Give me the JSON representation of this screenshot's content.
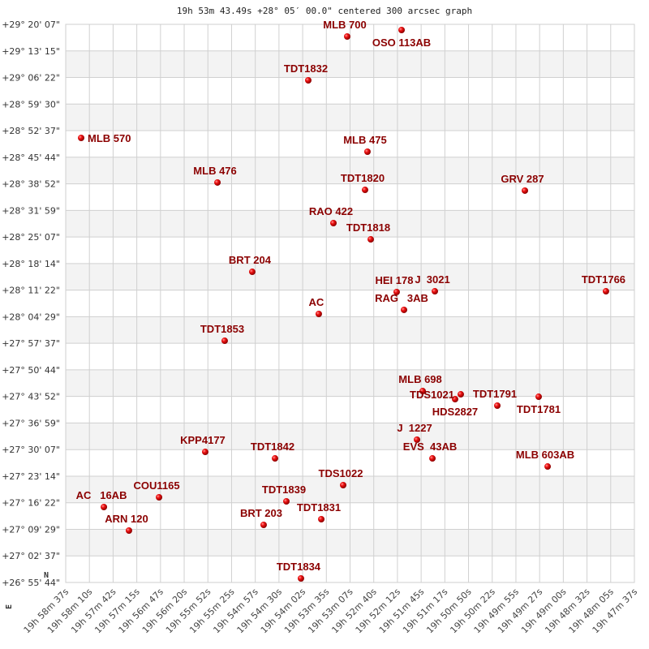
{
  "chart_data": {
    "type": "scatter",
    "title": "19h 53m 43.49s +28° 05′ 00.0\" centered 300 arcsec graph",
    "xlabel": "",
    "ylabel": "",
    "x_ticks": [
      "19h 58m 37s",
      "19h 58m 10s",
      "19h 57m 42s",
      "19h 57m 15s",
      "19h 56m 47s",
      "19h 56m 20s",
      "19h 55m 52s",
      "19h 55m 25s",
      "19h 54m 57s",
      "19h 54m 30s",
      "19h 54m 02s",
      "19h 53m 35s",
      "19h 53m 07s",
      "19h 52m 40s",
      "19h 52m 12s",
      "19h 51m 45s",
      "19h 51m 17s",
      "19h 50m 50s",
      "19h 50m 22s",
      "19h 49m 55s",
      "19h 49m 27s",
      "19h 49m 00s",
      "19h 48m 32s",
      "19h 48m 05s",
      "19h 47m 37s"
    ],
    "y_ticks": [
      "+29° 20' 07\"",
      "+29° 13' 15\"",
      "+29° 06' 22\"",
      "+28° 59' 30\"",
      "+28° 52' 37\"",
      "+28° 45' 44\"",
      "+28° 38' 52\"",
      "+28° 31' 59\"",
      "+28° 25' 07\"",
      "+28° 18' 14\"",
      "+28° 11' 22\"",
      "+28° 04' 29\"",
      "+27° 57' 37\"",
      "+27° 50' 44\"",
      "+27° 43' 52\"",
      "+27° 36' 59\"",
      "+27° 30' 07\"",
      "+27° 23' 14\"",
      "+27° 16' 22\"",
      "+27° 09' 29\"",
      "+27° 02' 37\"",
      "+26° 55' 44\""
    ],
    "xlim": [
      "19h 58m 37s",
      "19h 47m 37s"
    ],
    "ylim": [
      "+26° 55' 44\"",
      "+29° 20' 07\""
    ],
    "x_reversed": true,
    "grid": true,
    "compass": {
      "north": "N",
      "east": "E"
    },
    "point_color": "#dd0000",
    "label_color": "#8b0000",
    "points": [
      {
        "name": "MLB 700",
        "ra": "19h 53m 10.3s",
        "dec": "+29° 16' 58\""
      },
      {
        "name": "OSO 113AB",
        "ra": "19h 52m 07.2s",
        "dec": "+29° 18' 39\""
      },
      {
        "name": "TDT1832",
        "ra": "19h 53m 55.5s",
        "dec": "+29° 05' 38\""
      },
      {
        "name": "MLB 570",
        "ra": "19h 58m 19.1s",
        "dec": "+28° 50' 44\""
      },
      {
        "name": "MLB 475",
        "ra": "19h 52m 46.8s",
        "dec": "+28° 47' 10\""
      },
      {
        "name": "MLB 476",
        "ra": "19h 55m 40.9s",
        "dec": "+28° 39' 12\""
      },
      {
        "name": "TDT1820",
        "ra": "19h 52m 49.6s",
        "dec": "+28° 37' 18\""
      },
      {
        "name": "GRV 287",
        "ra": "19h 49m 44.1s",
        "dec": "+28° 37' 06\""
      },
      {
        "name": "RAO 422",
        "ra": "19h 53m 26.3s",
        "dec": "+28° 28' 42\""
      },
      {
        "name": "TDT1818",
        "ra": "19h 52m 43.0s",
        "dec": "+28° 24' 30\""
      },
      {
        "name": "BRT 204",
        "ra": "19h 55m 00.5s",
        "dec": "+28° 16' 06\""
      },
      {
        "name": "HEI 178",
        "ra": "19h 52m 12.9s",
        "dec": "+28° 10' 52\""
      },
      {
        "name": "J  3021",
        "ra": "19h 51m 28.6s",
        "dec": "+28° 11' 04\""
      },
      {
        "name": "TDT1766",
        "ra": "19h 48m 10.0s",
        "dec": "+28° 11' 04\""
      },
      {
        "name": "RAG   3AB",
        "ra": "19h 52m 04.4s",
        "dec": "+28° 06' 15\""
      },
      {
        "name": "AC",
        "ra": "19h 53m 43.3s",
        "dec": "+28° 05' 12\""
      },
      {
        "name": "TDT1853",
        "ra": "19h 55m 32.5s",
        "dec": "+27° 58' 16\""
      },
      {
        "name": "MLB 698",
        "ra": "19h 51m 42.7s",
        "dec": "+27° 45' 15\""
      },
      {
        "name": "HDS2827",
        "ra": "19h 51m 05.1s",
        "dec": "+27° 43' 09\""
      },
      {
        "name": "TDS1021",
        "ra": "19h 50m 58.5s",
        "dec": "+27° 44' 25\""
      },
      {
        "name": "TDT1791",
        "ra": "19h 50m 16.1s",
        "dec": "+27° 41' 29\""
      },
      {
        "name": "TDT1781",
        "ra": "19h 49m 28.1s",
        "dec": "+27° 43' 47\""
      },
      {
        "name": "J  1227",
        "ra": "19h 51m 49.3s",
        "dec": "+27° 32' 40\""
      },
      {
        "name": "EVS  43AB",
        "ra": "19h 51m 31.4s",
        "dec": "+27° 27' 50\""
      },
      {
        "name": "MLB 603AB",
        "ra": "19h 49m 17.7s",
        "dec": "+27° 25' 44\""
      },
      {
        "name": "KPP4177",
        "ra": "19h 55m 55.1s",
        "dec": "+27° 29' 31\""
      },
      {
        "name": "TDT1842",
        "ra": "19h 54m 34.1s",
        "dec": "+27° 27' 50\""
      },
      {
        "name": "TDS1022",
        "ra": "19h 53m 15.0s",
        "dec": "+27° 20' 55\""
      },
      {
        "name": "COU1165",
        "ra": "19h 56m 48.7s",
        "dec": "+27° 17' 46\""
      },
      {
        "name": "TDT1839",
        "ra": "19h 54m 20.9s",
        "dec": "+27° 16' 43\""
      },
      {
        "name": "AC   16AB",
        "ra": "19h 57m 52.7s",
        "dec": "+27° 15' 15\""
      },
      {
        "name": "TDT1831",
        "ra": "19h 53m 40.4s",
        "dec": "+27° 12' 06\""
      },
      {
        "name": "BRT 203",
        "ra": "19h 54m 47.3s",
        "dec": "+27° 10' 38\""
      },
      {
        "name": "ARN 120",
        "ra": "19h 57m 23.6s",
        "dec": "+27° 09' 10\""
      },
      {
        "name": "TDT1834",
        "ra": "19h 54m 04.0s",
        "dec": "+26° 56' 47\""
      }
    ]
  }
}
